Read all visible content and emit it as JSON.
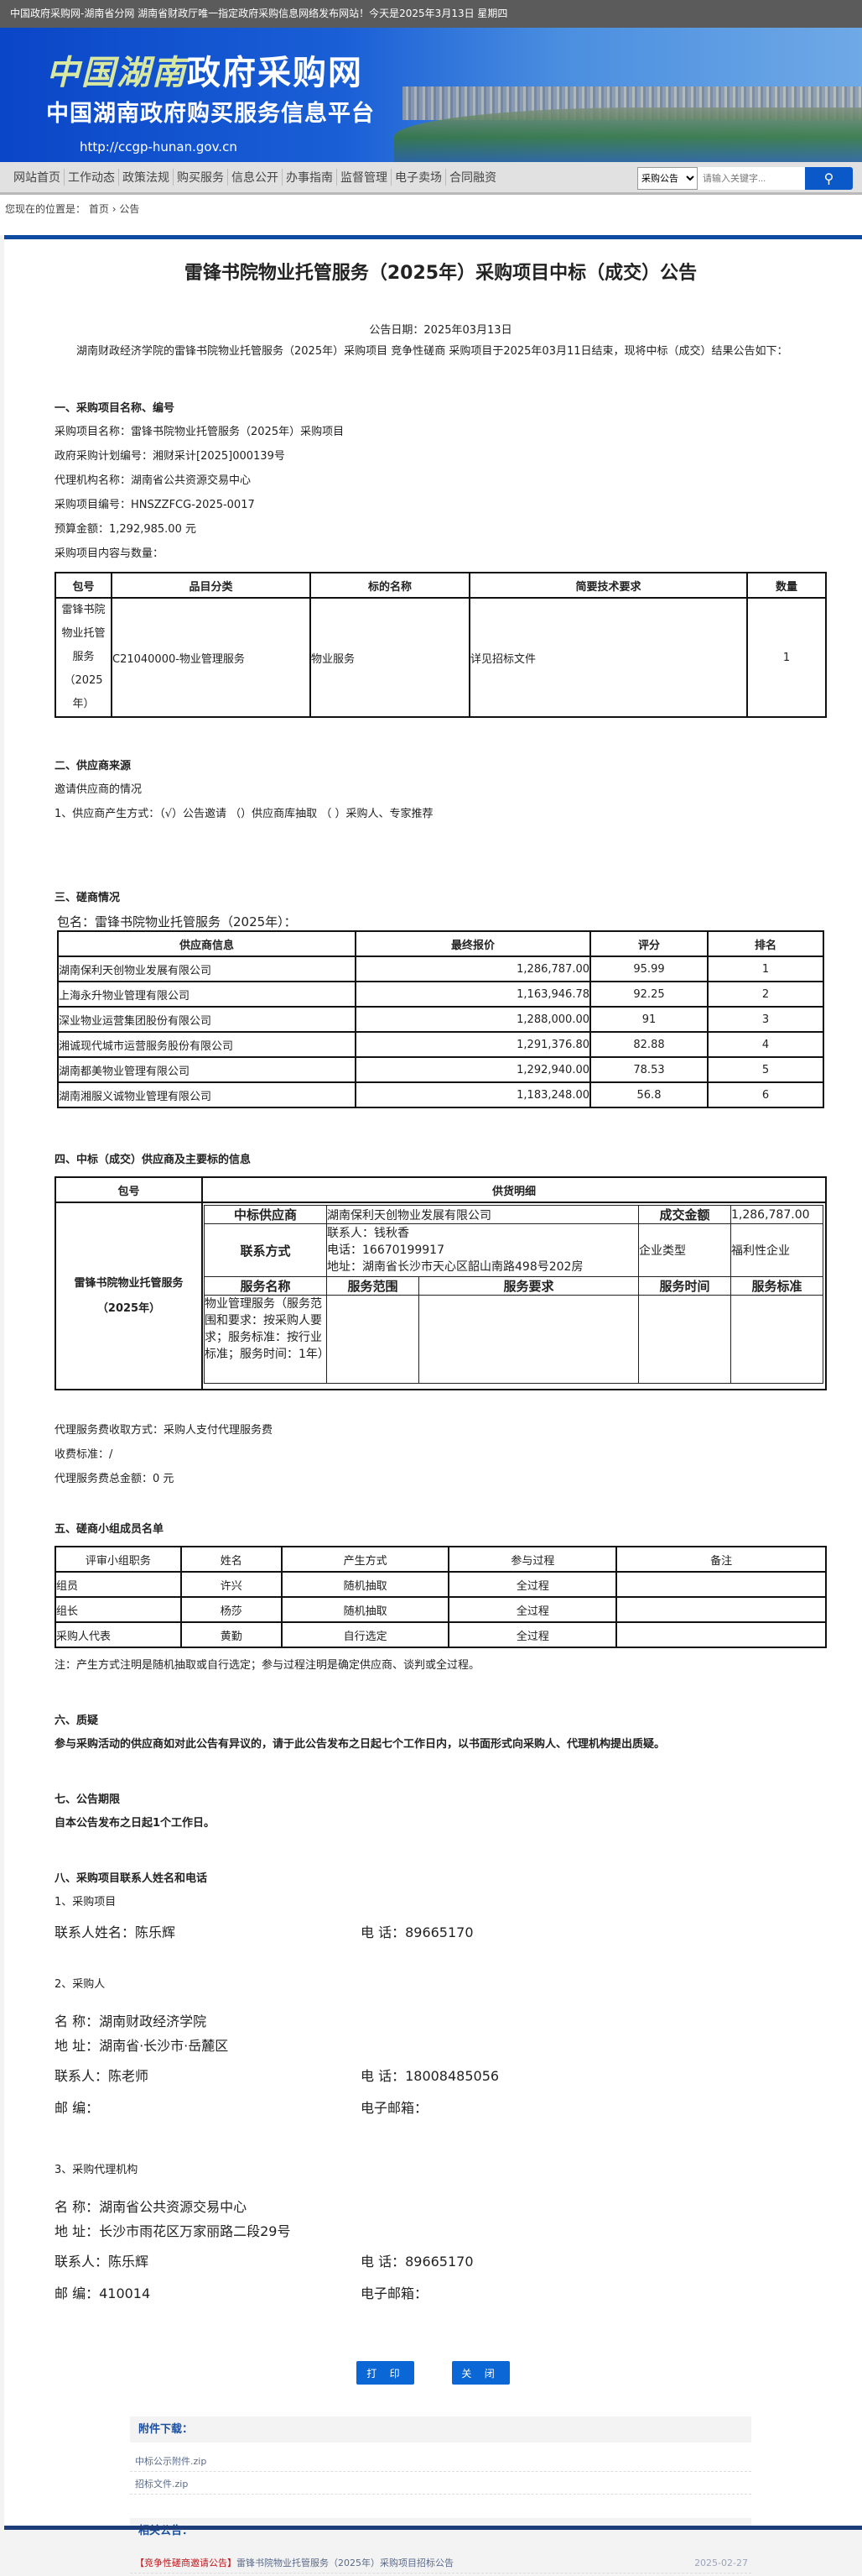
{
  "topbar": {
    "text": "中国政府采购网-湖南省分网  湖南省财政厅唯一指定政府采购信息网络发布网站！今天是2025年3月13日  星期四"
  },
  "banner": {
    "logo_hand": "中国湖南",
    "logo_main": "政府采购网",
    "subtitle": "中国湖南政府购买服务信息平台",
    "url": "http://ccgp-hunan.gov.cn"
  },
  "nav": {
    "items": [
      "网站首页",
      "工作动态",
      "政策法规",
      "购买服务",
      "信息公开",
      "办事指南",
      "监督管理",
      "电子卖场",
      "合同融资"
    ],
    "search_select": "采购公告",
    "search_placeholder": "请输入关键字..."
  },
  "breadcrumb": {
    "label": "您现在的位置是：",
    "home": "首页",
    "sep": "›",
    "current": "公告"
  },
  "notice": {
    "title": "雷锋书院物业托管服务（2025年）采购项目中标（成交）公告",
    "date": "公告日期：2025年03月13日",
    "intro": "湖南财政经济学院的雷锋书院物业托管服务（2025年）采购项目 竞争性磋商 采购项目于2025年03月11日结束，现将中标（成交）结果公告如下：",
    "s1": {
      "heading": "一、采购项目名称、编号",
      "lines": [
        "采购项目名称：雷锋书院物业托管服务（2025年）采购项目",
        "政府采购计划编号：湘财采计[2025]000139号",
        "代理机构名称：湖南省公共资源交易中心",
        "采购项目编号：HNSZZFCG-2025-0017",
        "预算金额：1,292,985.00 元",
        "采购项目内容与数量："
      ],
      "table": {
        "headers": [
          "包号",
          "品目分类",
          "标的名称",
          "简要技术要求",
          "数量"
        ],
        "row": [
          "雷锋书院物业托管服务（2025年）",
          "C21040000-物业管理服务",
          "物业服务",
          "详见招标文件",
          "1"
        ]
      }
    },
    "s2": {
      "heading": "二、供应商来源",
      "lines": [
        "邀请供应商的情况",
        "1、供应商产生方式：（√）公告邀请 （）供应商库抽取 （ ）采购人、专家推荐"
      ]
    },
    "s3": {
      "heading": "三、磋商情况",
      "package": "包名：雷锋书院物业托管服务（2025年）：",
      "headers": [
        "供应商信息",
        "最终报价",
        "评分",
        "排名"
      ],
      "rows": [
        [
          "湖南保利天创物业发展有限公司",
          "1,286,787.00",
          "95.99",
          "1"
        ],
        [
          "上海永升物业管理有限公司",
          "1,163,946.78",
          "92.25",
          "2"
        ],
        [
          "深业物业运营集团股份有限公司",
          "1,288,000.00",
          "91",
          "3"
        ],
        [
          "湘诚现代城市运营服务股份有限公司",
          "1,291,376.80",
          "82.88",
          "4"
        ],
        [
          "湖南都美物业管理有限公司",
          "1,292,940.00",
          "78.53",
          "5"
        ],
        [
          "湖南湘服义诚物业管理有限公司",
          "1,183,248.00",
          "56.8",
          "6"
        ]
      ]
    },
    "s4": {
      "heading": "四、中标（成交）供应商及主要标的信息",
      "h_pkg": "包号",
      "h_detail": "供货明细",
      "pkg": "雷锋书院物业托管服务",
      "pkg_year": "（2025年）",
      "l_supplier": "中标供应商",
      "supplier": "湖南保利天创物业发展有限公司",
      "l_amount": "成交金额",
      "amount": "1,286,787.00",
      "l_contact": "联系方式",
      "contact": "联系人：钱秋香",
      "phone": "电话：16670199917",
      "address": "地址：湖南省长沙市天心区韶山南路498号202房",
      "l_type": "企业类型",
      "type": "福利性企业",
      "svc_headers": [
        "服务名称",
        "服务范围",
        "服务要求",
        "服务时间",
        "服务标准"
      ],
      "svc_name": "物业管理服务（服务范围和要求：按采购人要求；服务标准：按行业标准；服务时间：1年）"
    },
    "fees": [
      "代理服务费收取方式：采购人支付代理服务费",
      "收费标准：/",
      "代理服务费总金额：0 元"
    ],
    "s5": {
      "heading": "五、磋商小组成员名单",
      "headers": [
        "评审小组职务",
        "姓名",
        "产生方式",
        "参与过程",
        "备注"
      ],
      "rows": [
        [
          "组员",
          "许兴",
          "随机抽取",
          "全过程",
          ""
        ],
        [
          "组长",
          "杨莎",
          "随机抽取",
          "全过程",
          ""
        ],
        [
          "采购人代表",
          "黄勤",
          "自行选定",
          "全过程",
          ""
        ]
      ],
      "note": "注：产生方式注明是随机抽取或自行选定；参与过程注明是确定供应商、谈判或全过程。"
    },
    "s6": {
      "heading": "六、质疑",
      "text": "参与采购活动的供应商如对此公告有异议的，请于此公告发布之日起七个工作日内，以书面形式向采购人、代理机构提出质疑。"
    },
    "s7": {
      "heading": "七、公告期限",
      "text": "自本公告发布之日起1个工作日。"
    },
    "s8": {
      "heading": "八、采购项目联系人姓名和电话",
      "p1": {
        "title": "1、采购项目",
        "contact": "联系人姓名：陈乐辉",
        "phone": "电 话：89665170"
      },
      "p2": {
        "title": "2、采购人",
        "name": "名 称：湖南财政经济学院",
        "address": "地 址：湖南省·长沙市·岳麓区",
        "contact": "联系人：陈老师",
        "phone": "电 话：18008485056",
        "zip": "邮 编：",
        "email": "电子邮箱："
      },
      "p3": {
        "title": "3、采购代理机构",
        "name": "名 称：湖南省公共资源交易中心",
        "address": "地 址：长沙市雨花区万家丽路二段29号",
        "contact": "联系人：陈乐辉",
        "phone": "电 话：89665170",
        "zip": "邮 编：410014",
        "email": "电子邮箱："
      }
    }
  },
  "buttons": {
    "print": "打 印",
    "close": "关 闭"
  },
  "attachments": {
    "title": "附件下载：",
    "items": [
      "中标公示附件.zip",
      "招标文件.zip"
    ]
  },
  "related": {
    "title": "相关公告：",
    "items": [
      {
        "tag": "【竞争性磋商邀请公告】",
        "title": "雷锋书院物业托管服务（2025年）采购项目招标公告",
        "date": "2025-02-27"
      }
    ]
  },
  "colors": {
    "accent": "#0b58c9",
    "topbar": "#5b5b5b",
    "tag": "#c0161d"
  }
}
